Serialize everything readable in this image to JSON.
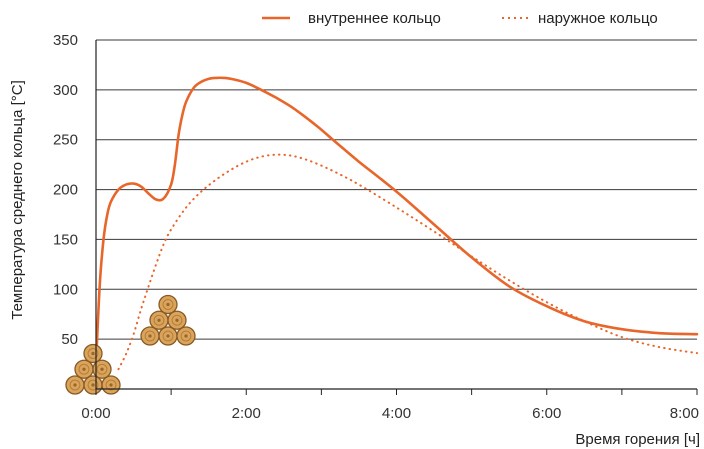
{
  "chart_data": {
    "type": "line",
    "xlabel": "Время горения [ч]",
    "ylabel": "Температура среднего кольца [°C]",
    "xlim": [
      0,
      8
    ],
    "ylim": [
      0,
      350
    ],
    "x_ticks": [
      {
        "value": 0,
        "label": "0:00"
      },
      {
        "value": 2,
        "label": "2:00"
      },
      {
        "value": 4,
        "label": "4:00"
      },
      {
        "value": 6,
        "label": "6:00"
      },
      {
        "value": 8,
        "label": "8:00"
      }
    ],
    "x_minor_ticks": [
      1,
      3,
      5,
      7
    ],
    "y_ticks": [
      50,
      100,
      150,
      200,
      250,
      300,
      350
    ],
    "grid": "horizontal",
    "legend_position": "top-right",
    "series": [
      {
        "name": "внутреннее кольцо",
        "style": "solid",
        "color": "#E8662A",
        "x": [
          0,
          0.05,
          0.1,
          0.15,
          0.2,
          0.3,
          0.4,
          0.5,
          0.6,
          0.7,
          0.8,
          0.9,
          1.0,
          1.05,
          1.1,
          1.15,
          1.2,
          1.3,
          1.4,
          1.5,
          1.6,
          1.7,
          1.8,
          2.0,
          2.2,
          2.4,
          2.6,
          2.8,
          3.0,
          3.2,
          3.5,
          4.0,
          4.5,
          5.0,
          5.5,
          6.0,
          6.5,
          7.0,
          7.5,
          8.0
        ],
        "y": [
          25,
          105,
          150,
          175,
          188,
          200,
          205,
          206,
          203,
          196,
          190,
          191,
          205,
          225,
          255,
          275,
          288,
          302,
          308,
          311,
          312,
          312,
          311,
          307,
          300,
          292,
          283,
          272,
          260,
          247,
          228,
          198,
          165,
          132,
          103,
          83,
          68,
          60,
          56,
          55
        ]
      },
      {
        "name": "наружное кольцо",
        "style": "dotted",
        "color": "#E8662A",
        "x": [
          0.3,
          0.4,
          0.5,
          0.6,
          0.7,
          0.8,
          0.9,
          1.0,
          1.2,
          1.4,
          1.6,
          1.8,
          2.0,
          2.2,
          2.4,
          2.6,
          2.8,
          3.0,
          3.2,
          3.5,
          4.0,
          4.5,
          5.0,
          5.5,
          6.0,
          6.5,
          7.0,
          7.5,
          8.0
        ],
        "y": [
          20,
          35,
          55,
          80,
          103,
          125,
          145,
          160,
          182,
          198,
          210,
          220,
          228,
          233,
          235,
          234,
          230,
          224,
          217,
          205,
          182,
          158,
          133,
          109,
          87,
          68,
          52,
          42,
          36
        ]
      }
    ]
  }
}
